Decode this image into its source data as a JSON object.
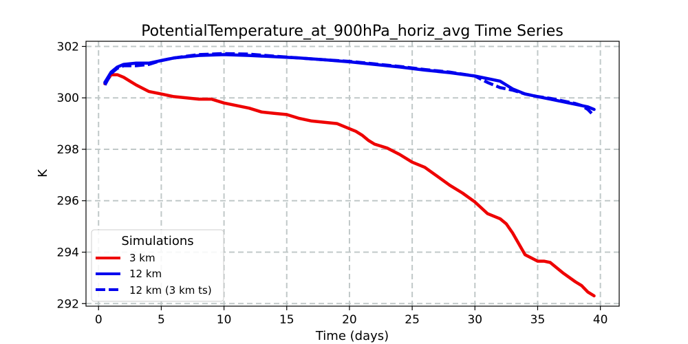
{
  "chart_data": {
    "type": "line",
    "title": "PotentialTemperature_at_900hPa_horiz_avg Time Series",
    "xlabel": "Time (days)",
    "ylabel": "K",
    "xlim": [
      -1,
      41.5
    ],
    "ylim": [
      291.9,
      302.2
    ],
    "xticks": [
      0,
      5,
      10,
      15,
      20,
      25,
      30,
      35,
      40
    ],
    "yticks": [
      292,
      294,
      296,
      298,
      300,
      302
    ],
    "grid": true,
    "legend": {
      "title": "Simulations",
      "position": "lower-left"
    },
    "series": [
      {
        "name": "3 km",
        "color": "#ee0000",
        "style": "solid",
        "x": [
          0.5,
          1,
          1.5,
          2,
          2.5,
          3,
          4,
          5,
          6,
          7,
          8,
          9,
          10,
          11,
          12,
          13,
          14,
          15,
          16,
          17,
          18,
          19,
          20,
          20.5,
          21,
          21.5,
          22,
          23,
          24,
          25,
          26,
          27,
          28,
          29,
          30,
          31,
          32,
          32.5,
          33,
          34,
          35,
          35.5,
          36,
          37,
          38,
          38.5,
          39,
          39.5
        ],
        "values": [
          300.55,
          300.9,
          300.9,
          300.8,
          300.65,
          300.5,
          300.25,
          300.15,
          300.05,
          300.0,
          299.95,
          299.95,
          299.8,
          299.7,
          299.6,
          299.45,
          299.4,
          299.35,
          299.2,
          299.1,
          299.05,
          299.0,
          298.8,
          298.7,
          298.55,
          298.35,
          298.2,
          298.05,
          297.8,
          297.5,
          297.3,
          296.95,
          296.6,
          296.3,
          295.95,
          295.5,
          295.3,
          295.1,
          294.75,
          293.9,
          293.65,
          293.65,
          293.6,
          293.2,
          292.85,
          292.7,
          292.45,
          292.3
        ]
      },
      {
        "name": "12 km",
        "color": "#0000ee",
        "style": "solid",
        "x": [
          0.5,
          1,
          1.5,
          2,
          3,
          4,
          5,
          6,
          7,
          8,
          10,
          12,
          14,
          16,
          18,
          20,
          22,
          24,
          26,
          28,
          30,
          32,
          32.5,
          33,
          34,
          35,
          36,
          37,
          38,
          39,
          39.5
        ],
        "values": [
          300.6,
          301.0,
          301.2,
          301.3,
          301.35,
          301.35,
          301.45,
          301.55,
          301.6,
          301.65,
          301.68,
          301.65,
          301.6,
          301.55,
          301.48,
          301.4,
          301.3,
          301.2,
          301.08,
          300.98,
          300.85,
          300.65,
          300.5,
          300.35,
          300.15,
          300.05,
          299.95,
          299.85,
          299.75,
          299.65,
          299.55
        ]
      },
      {
        "name": "12 km (3 km ts)",
        "color": "#0000ee",
        "style": "dashed",
        "x": [
          0.5,
          1,
          1.5,
          2,
          3,
          4,
          5,
          6,
          7,
          8,
          10,
          12,
          14,
          16,
          18,
          20,
          22,
          24,
          26,
          28,
          30,
          31,
          32,
          33,
          34,
          35,
          36,
          37,
          38,
          38.5,
          39,
          39.3
        ],
        "values": [
          300.5,
          300.95,
          301.15,
          301.25,
          301.25,
          301.3,
          301.45,
          301.55,
          301.62,
          301.68,
          301.72,
          301.7,
          301.62,
          301.55,
          301.48,
          301.42,
          301.32,
          301.22,
          301.1,
          301.0,
          300.85,
          300.6,
          300.4,
          300.3,
          300.15,
          300.05,
          299.98,
          299.88,
          299.78,
          299.7,
          299.55,
          299.4
        ]
      }
    ]
  }
}
